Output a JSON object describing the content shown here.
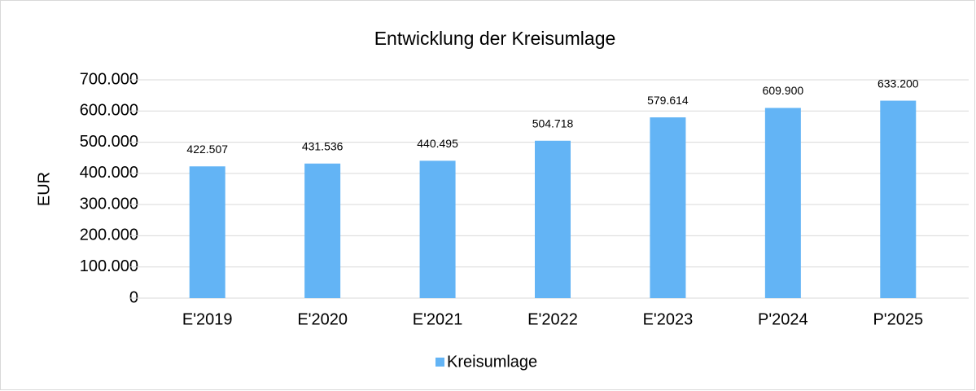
{
  "chart_data": {
    "type": "bar",
    "title": "Entwicklung der Kreisumlage",
    "y_label": "EUR",
    "categories": [
      "E'2019",
      "E'2020",
      "E'2021",
      "E'2022",
      "E'2023",
      "P'2024",
      "P'2025"
    ],
    "series": [
      {
        "name": "Kreisumlage",
        "color": "#63b4f5",
        "values": [
          422507,
          431536,
          440495,
          504718,
          579614,
          609900,
          633200
        ],
        "value_labels": [
          "422.507",
          "431.536",
          "440.495",
          "504.718",
          "579.614",
          "609.900",
          "633.200"
        ]
      }
    ],
    "ylim": [
      0,
      700000
    ],
    "yticks": [
      0,
      {
        "value": 100000,
        "label": "100.000"
      },
      {
        "value": 200000,
        "label": "200.000"
      },
      {
        "value": 300000,
        "label": "300.000"
      },
      {
        "value": 400000,
        "label": "400.000"
      },
      {
        "value": 500000,
        "label": "500.000"
      },
      {
        "value": 600000,
        "label": "600.000"
      },
      {
        "value": 700000,
        "label": "700.000"
      }
    ],
    "grid": true,
    "legend": "bottom"
  }
}
